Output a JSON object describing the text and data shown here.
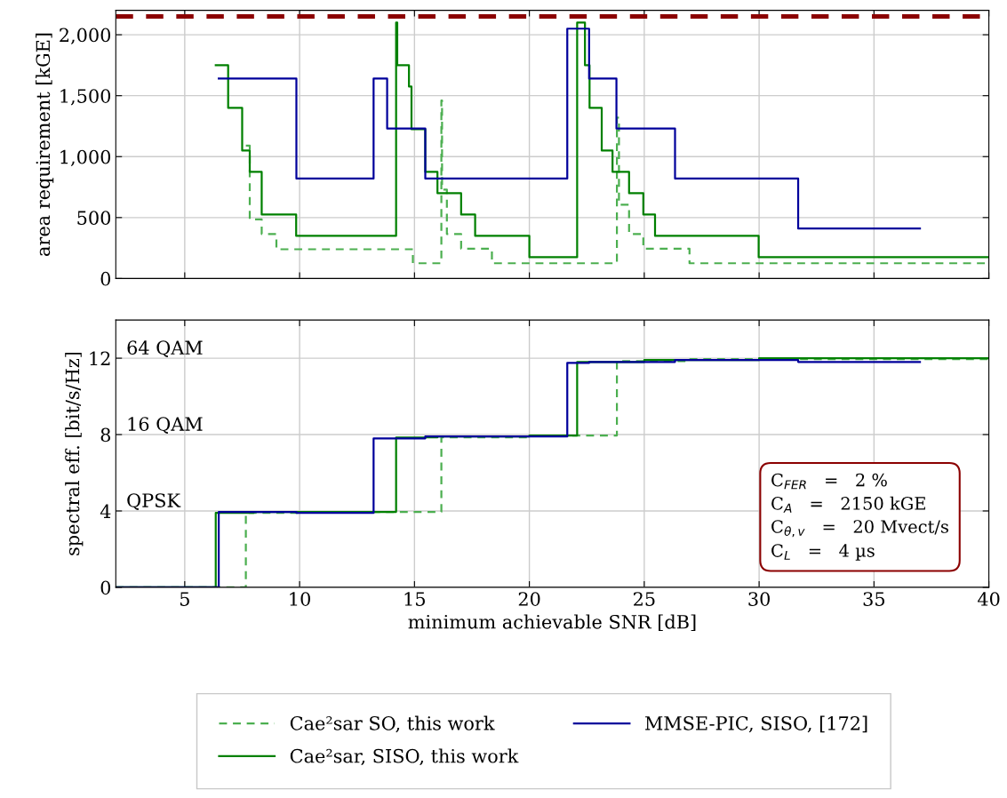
{
  "chart_data": [
    {
      "type": "step",
      "ylabel": "area requirement [kGE]",
      "xlim": [
        2,
        40
      ],
      "xticks": [
        5,
        10,
        15,
        20,
        25,
        30,
        35,
        40
      ],
      "ylim": [
        0,
        2200
      ],
      "yticks": [
        0,
        {
          "value": 500,
          "label": "500"
        },
        {
          "value": 1000,
          "label": "1,000"
        },
        {
          "value": 1500,
          "label": "1,500"
        },
        {
          "value": 2000,
          "label": "2,000"
        }
      ],
      "grid": true,
      "tick_labels": "y",
      "legend": "bottom",
      "ref_lines": [
        {
          "axis": "y",
          "value": 2150,
          "color": "#8b0000",
          "line_style": "dashed"
        }
      ],
      "series": [
        {
          "name": "Cae²sar SO, this work",
          "color": "#4caf50",
          "line_style": "dashed",
          "x": [
            7.66,
            7.83,
            8.35,
            8.99,
            14.93,
            16.17,
            16.2,
            16.41,
            17.03,
            18.37,
            23.81,
            23.9,
            24.34,
            24.96,
            26.97,
            40
          ],
          "values": [
            1090,
            485,
            365,
            240,
            125,
            1460,
            730,
            365,
            245,
            125,
            1320,
            605,
            365,
            245,
            125,
            125
          ]
        },
        {
          "name": "Cae²sar, SISO, this work",
          "color": "#008000",
          "line_style": "solid",
          "x": [
            6.35,
            6.89,
            7.5,
            7.83,
            8.35,
            9.85,
            14.2,
            14.25,
            14.76,
            14.87,
            15.47,
            16.0,
            17.03,
            17.64,
            20.0,
            22.08,
            22.42,
            22.62,
            23.15,
            23.62,
            24.34,
            24.96,
            25.47,
            29.98,
            40
          ],
          "values": [
            1750,
            1400,
            1050,
            875,
            525,
            350,
            2100,
            1750,
            1575,
            1225,
            875,
            700,
            525,
            350,
            175,
            2100,
            1750,
            1400,
            1050,
            875,
            700,
            525,
            350,
            175,
            175
          ]
        },
        {
          "name": "MMSE-PIC, SISO, [172]",
          "color": "#00009b",
          "line_style": "solid",
          "x": [
            6.48,
            9.86,
            13.22,
            13.81,
            15.47,
            21.65,
            22.6,
            23.79,
            26.34,
            31.7,
            37
          ],
          "values": [
            1640,
            820,
            1640,
            1230,
            820,
            2050,
            1640,
            1230,
            820,
            410,
            410
          ]
        }
      ]
    },
    {
      "type": "step",
      "xlabel": "minimum achievable SNR [dB]",
      "ylabel": "spectral eff. [bit/s/Hz]",
      "xlim": [
        2,
        40
      ],
      "xticks": [
        5,
        10,
        15,
        20,
        25,
        30,
        35,
        40
      ],
      "ylim": [
        0,
        14
      ],
      "yticks": [
        0,
        4,
        8,
        12
      ],
      "grid": true,
      "annotations": [
        "64 QAM",
        "16 QAM",
        "QPSK",
        "C$_{FER}$   =   2 %",
        "C$_{A}$   =   2150 kGE",
        "C$_{θ,v}$   =   20 Mvect/s",
        "C$_{L}$   =   4 µs"
      ],
      "series": [
        {
          "color": "#4caf50",
          "line_style": "dashed",
          "x": [
            2,
            7.66,
            10,
            16.17,
            20,
            23.81,
            27,
            40
          ],
          "values": [
            0,
            3.9,
            3.95,
            7.85,
            7.95,
            11.85,
            11.95,
            12
          ]
        },
        {
          "color": "#008000",
          "line_style": "solid",
          "x": [
            2,
            6.35,
            8,
            10,
            14.2,
            16,
            20,
            22.08,
            25,
            30,
            40
          ],
          "values": [
            0,
            3.9,
            3.95,
            3.95,
            7.85,
            7.9,
            7.95,
            11.8,
            11.9,
            12,
            12
          ]
        },
        {
          "color": "#00009b",
          "line_style": "solid",
          "x": [
            2,
            6.48,
            9.86,
            13.22,
            15.47,
            21.65,
            22.6,
            26.34,
            31.7,
            37
          ],
          "values": [
            0,
            3.95,
            3.9,
            7.8,
            7.9,
            11.75,
            11.8,
            11.9,
            11.8,
            11.8
          ]
        }
      ]
    }
  ]
}
